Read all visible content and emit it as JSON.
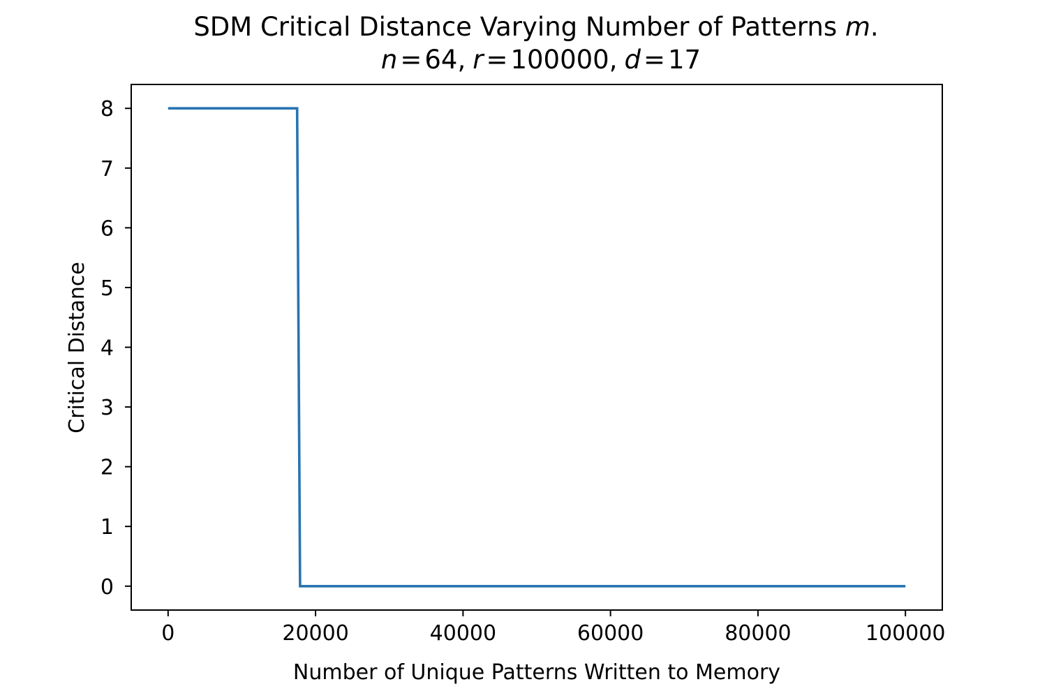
{
  "chart_data": {
    "type": "line",
    "title": "SDM Critical Distance Varying Number of Patterns m.",
    "title_parts": {
      "main": "SDM Critical Distance Varying Number of Patterns ",
      "var_m": "m",
      "period": "."
    },
    "subtitle": "n = 64, r = 100000, d = 17",
    "subtitle_parts": {
      "n_var": "n",
      "n_val": "64,",
      "r_var": "r",
      "r_val": "100000,",
      "d_var": "d",
      "d_val": "17",
      "eq": "="
    },
    "xlabel": "Number of Unique Patterns Written to Memory",
    "ylabel": "Critical Distance",
    "xlim": [
      -5000,
      105000
    ],
    "ylim": [
      -0.4,
      8.4
    ],
    "xticks": [
      0,
      20000,
      40000,
      60000,
      80000,
      100000
    ],
    "xtick_labels": [
      "0",
      "20000",
      "40000",
      "60000",
      "80000",
      "100000"
    ],
    "yticks": [
      0,
      1,
      2,
      3,
      4,
      5,
      6,
      7,
      8
    ],
    "ytick_labels": [
      "0",
      "1",
      "2",
      "3",
      "4",
      "5",
      "6",
      "7",
      "8"
    ],
    "grid": false,
    "series": [
      {
        "color": "#2874b2",
        "x": [
          0,
          17500,
          17900,
          100000
        ],
        "y": [
          8,
          8,
          0,
          0
        ]
      }
    ]
  }
}
